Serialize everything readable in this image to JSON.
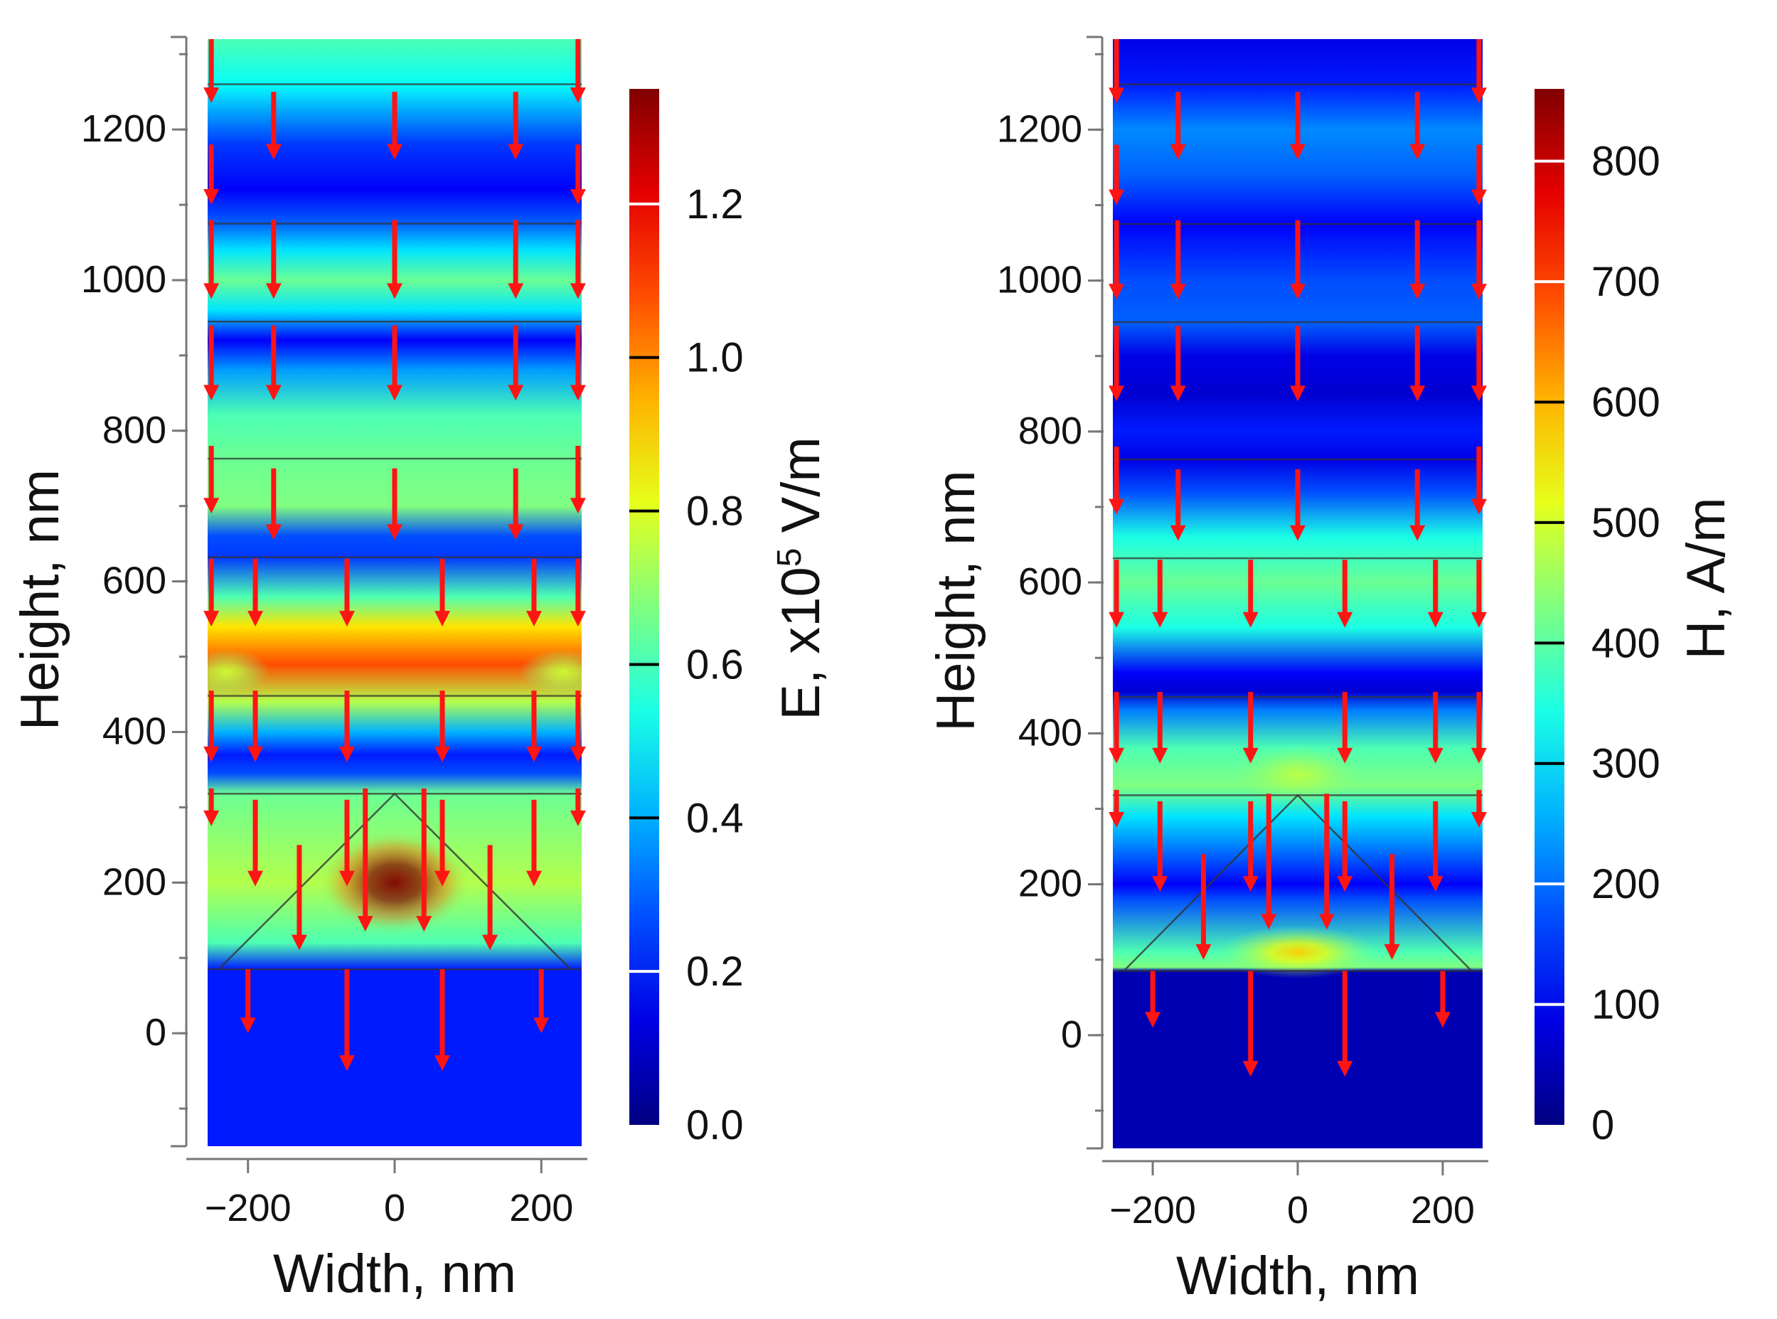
{
  "chart_data": [
    {
      "type": "heatmap",
      "quantity": "E",
      "xlabel": "Width, nm",
      "ylabel": "Height, nm",
      "xlim": [
        -255,
        255
      ],
      "ylim": [
        -150,
        1320
      ],
      "xticks": [
        -200,
        0,
        200
      ],
      "xtick_labels": [
        "−200",
        "0",
        "200"
      ],
      "yticks": [
        0,
        200,
        400,
        600,
        800,
        1000,
        1200
      ],
      "yticks_minor_step": 100,
      "colorbar": {
        "label_prefix": "E, x10",
        "label_sup": "5",
        "label_suffix": " V/m",
        "range": [
          0.0,
          1.35
        ],
        "ticks": [
          0.0,
          0.2,
          0.4,
          0.6,
          0.8,
          1.0,
          1.2
        ],
        "tick_labels": [
          "0.0",
          "0.2",
          "0.4",
          "0.6",
          "0.8",
          "1.0",
          "1.2"
        ],
        "colormap": "jet"
      },
      "layer_boundaries_y": [
        1260,
        1075,
        945,
        763,
        632,
        448,
        318,
        85
      ],
      "pyramid": {
        "apex": [
          0,
          318
        ],
        "base": [
          [
            -240,
            85
          ],
          [
            240,
            85
          ]
        ]
      },
      "field_profile": {
        "background": [
          [
            -150,
            0.15
          ],
          [
            85,
            0.15
          ],
          [
            120,
            0.45
          ],
          [
            200,
            0.55
          ],
          [
            318,
            0.48
          ],
          [
            345,
            0.2
          ],
          [
            370,
            0.15
          ],
          [
            400,
            0.3
          ],
          [
            440,
            0.55
          ],
          [
            490,
            0.8
          ],
          [
            540,
            0.65
          ],
          [
            580,
            0.45
          ],
          [
            632,
            0.18
          ],
          [
            660,
            0.2
          ],
          [
            700,
            0.5
          ],
          [
            763,
            0.48
          ],
          [
            820,
            0.45
          ],
          [
            880,
            0.28
          ],
          [
            920,
            0.12
          ],
          [
            960,
            0.35
          ],
          [
            1000,
            0.48
          ],
          [
            1040,
            0.35
          ],
          [
            1075,
            0.22
          ],
          [
            1120,
            0.12
          ],
          [
            1180,
            0.18
          ],
          [
            1260,
            0.38
          ],
          [
            1320,
            0.45
          ]
        ],
        "hotspots": [
          {
            "x": 0,
            "y": 200,
            "rx": 105,
            "ry": 70,
            "peak": 0.95
          },
          {
            "x": -230,
            "y": 480,
            "rx": 60,
            "ry": 30,
            "peak": 0.15
          },
          {
            "x": 230,
            "y": 480,
            "rx": 60,
            "ry": 30,
            "peak": 0.15
          }
        ]
      },
      "arrow_rows": [
        {
          "y_top": 1320,
          "len": 85,
          "xs": [
            -250,
            250
          ]
        },
        {
          "y_top": 1250,
          "len": 90,
          "xs": [
            -165,
            0,
            165
          ]
        },
        {
          "y_top": 1180,
          "len": 80,
          "xs": [
            -250,
            250
          ]
        },
        {
          "y_top": 1080,
          "len": 105,
          "xs": [
            -250,
            -165,
            0,
            165,
            250
          ]
        },
        {
          "y_top": 940,
          "len": 100,
          "xs": [
            -250,
            -165,
            0,
            165,
            250
          ]
        },
        {
          "y_top": 780,
          "len": 90,
          "xs": [
            -250,
            250
          ]
        },
        {
          "y_top": 750,
          "len": 95,
          "xs": [
            -165,
            0,
            165
          ]
        },
        {
          "y_top": 630,
          "len": 90,
          "xs": [
            -250,
            -190,
            -65,
            65,
            190,
            250
          ]
        },
        {
          "y_top": 455,
          "len": 95,
          "xs": [
            -250,
            -190,
            -65,
            65,
            190,
            250
          ]
        },
        {
          "y_top": 325,
          "len": 50,
          "xs": [
            -250,
            250
          ]
        },
        {
          "y_top": 310,
          "len": 115,
          "xs": [
            -190,
            -65,
            65,
            190
          ]
        },
        {
          "y_top": 325,
          "len": 190,
          "xs": [
            -40,
            40
          ]
        },
        {
          "y_top": 250,
          "len": 140,
          "xs": [
            -130,
            130
          ]
        },
        {
          "y_top": 85,
          "len": 85,
          "xs": [
            -200,
            200
          ]
        },
        {
          "y_top": 85,
          "len": 135,
          "xs": [
            -65,
            65
          ]
        }
      ]
    },
    {
      "type": "heatmap",
      "quantity": "H",
      "xlabel": "Width, nm",
      "ylabel": "Height, nm",
      "xlim": [
        -255,
        255
      ],
      "ylim": [
        -150,
        1320
      ],
      "xticks": [
        -200,
        0,
        200
      ],
      "xtick_labels": [
        "−200",
        "0",
        "200"
      ],
      "yticks": [
        0,
        200,
        400,
        600,
        800,
        1000,
        1200
      ],
      "yticks_minor_step": 100,
      "colorbar": {
        "label_prefix": "H, A/m",
        "label_sup": "",
        "label_suffix": "",
        "range": [
          0,
          860
        ],
        "ticks": [
          0,
          100,
          200,
          300,
          400,
          500,
          600,
          700,
          800
        ],
        "tick_labels": [
          "0",
          "100",
          "200",
          "300",
          "400",
          "500",
          "600",
          "700",
          "800"
        ],
        "colormap": "jet"
      },
      "layer_boundaries_y": [
        1260,
        1075,
        945,
        763,
        632,
        448,
        318,
        85
      ],
      "pyramid": {
        "apex": [
          0,
          318
        ],
        "base": [
          [
            -240,
            85
          ],
          [
            240,
            85
          ]
        ]
      },
      "field_profile": {
        "background": [
          [
            -150,
            0.05
          ],
          [
            85,
            0.05
          ],
          [
            90,
            0.5
          ],
          [
            110,
            0.45
          ],
          [
            180,
            0.2
          ],
          [
            200,
            0.12
          ],
          [
            230,
            0.2
          ],
          [
            290,
            0.35
          ],
          [
            330,
            0.5
          ],
          [
            380,
            0.45
          ],
          [
            430,
            0.25
          ],
          [
            455,
            0.08
          ],
          [
            480,
            0.12
          ],
          [
            540,
            0.4
          ],
          [
            600,
            0.48
          ],
          [
            660,
            0.4
          ],
          [
            720,
            0.2
          ],
          [
            763,
            0.1
          ],
          [
            800,
            0.15
          ],
          [
            850,
            0.08
          ],
          [
            900,
            0.1
          ],
          [
            945,
            0.22
          ],
          [
            1000,
            0.2
          ],
          [
            1075,
            0.12
          ],
          [
            1140,
            0.22
          ],
          [
            1200,
            0.26
          ],
          [
            1260,
            0.15
          ],
          [
            1320,
            0.1
          ]
        ],
        "hotspots": [
          {
            "x": 0,
            "y": 110,
            "rx": 110,
            "ry": 35,
            "peak": 0.35
          },
          {
            "x": 0,
            "y": 345,
            "rx": 90,
            "ry": 40,
            "peak": 0.12
          }
        ]
      },
      "arrow_rows": [
        {
          "y_top": 1320,
          "len": 85,
          "xs": [
            -250,
            250
          ]
        },
        {
          "y_top": 1250,
          "len": 90,
          "xs": [
            -165,
            0,
            165
          ]
        },
        {
          "y_top": 1180,
          "len": 80,
          "xs": [
            -250,
            250
          ]
        },
        {
          "y_top": 1080,
          "len": 105,
          "xs": [
            -250,
            -165,
            0,
            165,
            250
          ]
        },
        {
          "y_top": 940,
          "len": 100,
          "xs": [
            -250,
            -165,
            0,
            165,
            250
          ]
        },
        {
          "y_top": 780,
          "len": 90,
          "xs": [
            -250,
            250
          ]
        },
        {
          "y_top": 750,
          "len": 95,
          "xs": [
            -165,
            0,
            165
          ]
        },
        {
          "y_top": 630,
          "len": 90,
          "xs": [
            -250,
            -190,
            -65,
            65,
            190,
            250
          ]
        },
        {
          "y_top": 455,
          "len": 95,
          "xs": [
            -250,
            -190,
            -65,
            65,
            190,
            250
          ]
        },
        {
          "y_top": 325,
          "len": 50,
          "xs": [
            -250,
            250
          ]
        },
        {
          "y_top": 310,
          "len": 120,
          "xs": [
            -190,
            -65,
            65,
            190
          ]
        },
        {
          "y_top": 320,
          "len": 180,
          "xs": [
            -40,
            40
          ]
        },
        {
          "y_top": 240,
          "len": 140,
          "xs": [
            -130,
            130
          ]
        },
        {
          "y_top": 85,
          "len": 75,
          "xs": [
            -200,
            200
          ]
        },
        {
          "y_top": 85,
          "len": 140,
          "xs": [
            -65,
            65
          ]
        }
      ]
    }
  ]
}
